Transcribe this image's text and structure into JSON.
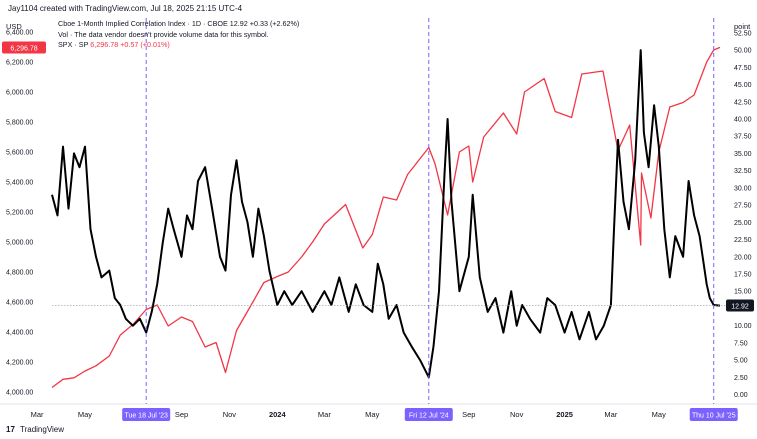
{
  "header": {
    "attribution": "Jay1104 created with TradingView.com, Jul 18, 2025 21:15 UTC-4"
  },
  "legend": {
    "vix_line": "Cboe 1-Month Implied Correlation Index · 1D · CBOE  12.92  +0.33 (+2.62%)",
    "vol_line": "Vol · The data vendor doesn't provide volume data for this symbol.",
    "spx_name": "SPX · SP",
    "spx_values": "6,296.78  +0.57 (+0.01%)"
  },
  "footer": {
    "brand": "TradingView",
    "logo_glyph": "17"
  },
  "chart_data": {
    "type": "line",
    "left_axis": {
      "unit_label": "USD",
      "ticks": [
        "6,400.00",
        "6,200.00",
        "6,000.00",
        "5,800.00",
        "5,600.00",
        "5,400.00",
        "5,200.00",
        "5,000.00",
        "4,800.00",
        "4,600.00",
        "4,400.00",
        "4,200.00",
        "4,000.00"
      ],
      "ylim": [
        3960,
        6440
      ]
    },
    "right_axis": {
      "unit_label": "point",
      "ticks": [
        "52.50",
        "50.00",
        "47.50",
        "45.00",
        "42.50",
        "40.00",
        "37.50",
        "35.00",
        "32.50",
        "30.00",
        "27.50",
        "25.00",
        "22.50",
        "20.00",
        "17.50",
        "15.00",
        "12.50",
        "10.00",
        "7.50",
        "5.00",
        "2.50",
        "0.00"
      ],
      "ylim": [
        -0.5,
        53.5
      ]
    },
    "x_axis": {
      "start": "2023-03-20",
      "end": "2025-07-18",
      "ticks": [
        {
          "label": "Mar",
          "date": "2023-03-01"
        },
        {
          "label": "May",
          "date": "2023-05-01"
        },
        {
          "label": "Sep",
          "date": "2023-09-01"
        },
        {
          "label": "Nov",
          "date": "2023-11-01"
        },
        {
          "label": "2024",
          "date": "2024-01-01"
        },
        {
          "label": "Mar",
          "date": "2024-03-01"
        },
        {
          "label": "May",
          "date": "2024-05-01"
        },
        {
          "label": "Sep",
          "date": "2024-09-01"
        },
        {
          "label": "Nov",
          "date": "2024-11-01"
        },
        {
          "label": "2025",
          "date": "2025-01-01"
        },
        {
          "label": "Mar",
          "date": "2025-03-01"
        },
        {
          "label": "May",
          "date": "2025-05-01"
        }
      ],
      "markers": [
        {
          "label": "Tue 18 Jul '23",
          "date": "2023-07-18"
        },
        {
          "label": "Fri 12 Jul '24",
          "date": "2024-07-12"
        },
        {
          "label": "Thu 10 Jul '25",
          "date": "2025-07-10"
        }
      ]
    },
    "series": [
      {
        "name": "SPX",
        "axis": "left",
        "color": "#f23645",
        "width": 1.3,
        "points": [
          [
            "2023-03-20",
            4030
          ],
          [
            "2023-04-03",
            4085
          ],
          [
            "2023-04-17",
            4095
          ],
          [
            "2023-05-01",
            4140
          ],
          [
            "2023-05-15",
            4175
          ],
          [
            "2023-06-01",
            4240
          ],
          [
            "2023-06-15",
            4380
          ],
          [
            "2023-07-01",
            4450
          ],
          [
            "2023-07-18",
            4550
          ],
          [
            "2023-08-01",
            4580
          ],
          [
            "2023-08-15",
            4440
          ],
          [
            "2023-09-01",
            4500
          ],
          [
            "2023-09-15",
            4470
          ],
          [
            "2023-10-01",
            4300
          ],
          [
            "2023-10-15",
            4330
          ],
          [
            "2023-10-27",
            4130
          ],
          [
            "2023-11-10",
            4410
          ],
          [
            "2023-12-01",
            4600
          ],
          [
            "2023-12-15",
            4730
          ],
          [
            "2024-01-01",
            4770
          ],
          [
            "2024-01-15",
            4800
          ],
          [
            "2024-02-01",
            4900
          ],
          [
            "2024-02-15",
            5000
          ],
          [
            "2024-03-01",
            5120
          ],
          [
            "2024-03-28",
            5250
          ],
          [
            "2024-04-19",
            4960
          ],
          [
            "2024-05-01",
            5050
          ],
          [
            "2024-05-15",
            5300
          ],
          [
            "2024-06-01",
            5280
          ],
          [
            "2024-06-15",
            5450
          ],
          [
            "2024-07-12",
            5630
          ],
          [
            "2024-07-20",
            5520
          ],
          [
            "2024-08-05",
            5180
          ],
          [
            "2024-08-20",
            5600
          ],
          [
            "2024-09-01",
            5640
          ],
          [
            "2024-09-06",
            5400
          ],
          [
            "2024-09-20",
            5700
          ],
          [
            "2024-10-15",
            5860
          ],
          [
            "2024-11-01",
            5720
          ],
          [
            "2024-11-11",
            6000
          ],
          [
            "2024-12-06",
            6090
          ],
          [
            "2024-12-20",
            5870
          ],
          [
            "2025-01-10",
            5830
          ],
          [
            "2025-01-23",
            6120
          ],
          [
            "2025-02-19",
            6140
          ],
          [
            "2025-03-10",
            5610
          ],
          [
            "2025-03-25",
            5780
          ],
          [
            "2025-04-08",
            4980
          ],
          [
            "2025-04-09",
            5460
          ],
          [
            "2025-04-21",
            5160
          ],
          [
            "2025-05-01",
            5600
          ],
          [
            "2025-05-15",
            5900
          ],
          [
            "2025-06-01",
            5930
          ],
          [
            "2025-06-15",
            5980
          ],
          [
            "2025-07-01",
            6200
          ],
          [
            "2025-07-10",
            6280
          ],
          [
            "2025-07-18",
            6297
          ]
        ]
      },
      {
        "name": "Cboe 1-Month Implied Correlation Index",
        "axis": "right",
        "color": "#000000",
        "width": 2,
        "points": [
          [
            "2023-03-20",
            29
          ],
          [
            "2023-03-27",
            26
          ],
          [
            "2023-04-03",
            36
          ],
          [
            "2023-04-10",
            27
          ],
          [
            "2023-04-17",
            35
          ],
          [
            "2023-04-24",
            33
          ],
          [
            "2023-05-01",
            36
          ],
          [
            "2023-05-08",
            24
          ],
          [
            "2023-05-15",
            20
          ],
          [
            "2023-05-22",
            17
          ],
          [
            "2023-06-01",
            18
          ],
          [
            "2023-06-08",
            14
          ],
          [
            "2023-06-15",
            13
          ],
          [
            "2023-06-22",
            11
          ],
          [
            "2023-07-01",
            10
          ],
          [
            "2023-07-10",
            11
          ],
          [
            "2023-07-18",
            9
          ],
          [
            "2023-07-25",
            12
          ],
          [
            "2023-08-01",
            16
          ],
          [
            "2023-08-08",
            22
          ],
          [
            "2023-08-15",
            27
          ],
          [
            "2023-08-22",
            24
          ],
          [
            "2023-09-01",
            20
          ],
          [
            "2023-09-08",
            26
          ],
          [
            "2023-09-15",
            24
          ],
          [
            "2023-09-22",
            31
          ],
          [
            "2023-10-01",
            33
          ],
          [
            "2023-10-10",
            27
          ],
          [
            "2023-10-20",
            20
          ],
          [
            "2023-10-27",
            18
          ],
          [
            "2023-11-03",
            29
          ],
          [
            "2023-11-10",
            34
          ],
          [
            "2023-11-17",
            28
          ],
          [
            "2023-11-24",
            25
          ],
          [
            "2023-12-01",
            20
          ],
          [
            "2023-12-08",
            27
          ],
          [
            "2023-12-15",
            23
          ],
          [
            "2023-12-22",
            18
          ],
          [
            "2024-01-01",
            13
          ],
          [
            "2024-01-10",
            15
          ],
          [
            "2024-01-20",
            13
          ],
          [
            "2024-02-01",
            15
          ],
          [
            "2024-02-15",
            12
          ],
          [
            "2024-03-01",
            15
          ],
          [
            "2024-03-10",
            13
          ],
          [
            "2024-03-20",
            17
          ],
          [
            "2024-04-01",
            12
          ],
          [
            "2024-04-10",
            16
          ],
          [
            "2024-04-20",
            13
          ],
          [
            "2024-05-01",
            12
          ],
          [
            "2024-05-08",
            19
          ],
          [
            "2024-05-15",
            16
          ],
          [
            "2024-05-22",
            11
          ],
          [
            "2024-06-01",
            13
          ],
          [
            "2024-06-10",
            9
          ],
          [
            "2024-06-20",
            7
          ],
          [
            "2024-07-01",
            5
          ],
          [
            "2024-07-12",
            2.5
          ],
          [
            "2024-07-18",
            7
          ],
          [
            "2024-07-25",
            15
          ],
          [
            "2024-08-01",
            32
          ],
          [
            "2024-08-05",
            40
          ],
          [
            "2024-08-10",
            28
          ],
          [
            "2024-08-20",
            15
          ],
          [
            "2024-09-01",
            20
          ],
          [
            "2024-09-06",
            29
          ],
          [
            "2024-09-15",
            17
          ],
          [
            "2024-09-25",
            12
          ],
          [
            "2024-10-05",
            14
          ],
          [
            "2024-10-15",
            9
          ],
          [
            "2024-10-25",
            15
          ],
          [
            "2024-11-01",
            10
          ],
          [
            "2024-11-08",
            13
          ],
          [
            "2024-11-18",
            11
          ],
          [
            "2024-12-01",
            9
          ],
          [
            "2024-12-10",
            14
          ],
          [
            "2024-12-20",
            13
          ],
          [
            "2025-01-01",
            9
          ],
          [
            "2025-01-10",
            12
          ],
          [
            "2025-01-20",
            8
          ],
          [
            "2025-02-01",
            12
          ],
          [
            "2025-02-10",
            8
          ],
          [
            "2025-02-20",
            10
          ],
          [
            "2025-03-01",
            13
          ],
          [
            "2025-03-05",
            24
          ],
          [
            "2025-03-10",
            37
          ],
          [
            "2025-03-17",
            28
          ],
          [
            "2025-03-24",
            24
          ],
          [
            "2025-04-01",
            34
          ],
          [
            "2025-04-08",
            50
          ],
          [
            "2025-04-12",
            38
          ],
          [
            "2025-04-18",
            33
          ],
          [
            "2025-04-25",
            42
          ],
          [
            "2025-05-01",
            36
          ],
          [
            "2025-05-08",
            24
          ],
          [
            "2025-05-15",
            17
          ],
          [
            "2025-05-22",
            23
          ],
          [
            "2025-06-01",
            20
          ],
          [
            "2025-06-08",
            31
          ],
          [
            "2025-06-15",
            26
          ],
          [
            "2025-06-22",
            23
          ],
          [
            "2025-07-01",
            16
          ],
          [
            "2025-07-05",
            14
          ],
          [
            "2025-07-10",
            13
          ],
          [
            "2025-07-18",
            12.92
          ]
        ]
      }
    ],
    "last_value_labels": {
      "left": "6,296.78",
      "right": "12.92"
    },
    "grid": false
  }
}
